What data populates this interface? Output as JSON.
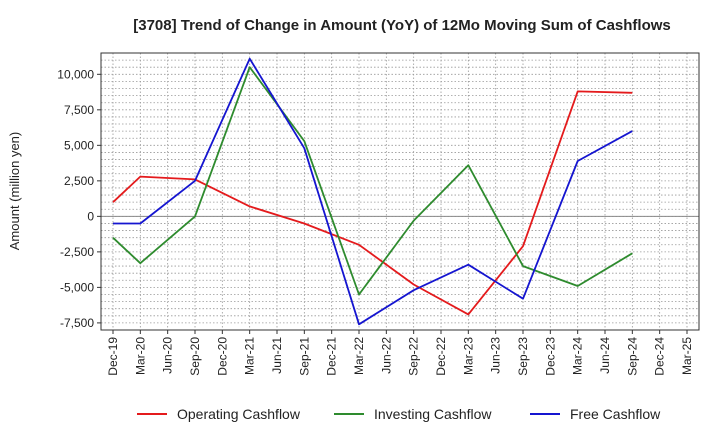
{
  "chart_data": {
    "type": "line",
    "title": "[3708]  Trend of Change in Amount (YoY) of 12Mo Moving Sum of Cashflows",
    "xlabel": "",
    "ylabel": "Amount (million yen)",
    "ylim": [
      -8000,
      11500
    ],
    "yticks": [
      -7500,
      -5000,
      -2500,
      0,
      2500,
      5000,
      7500,
      10000
    ],
    "ytick_labels": [
      "-7,500",
      "-5,000",
      "-2,500",
      "0",
      "2,500",
      "5,000",
      "7,500",
      "10,000"
    ],
    "categories": [
      "Dec-19",
      "Mar-20",
      "Jun-20",
      "Sep-20",
      "Dec-20",
      "Mar-21",
      "Jun-21",
      "Sep-21",
      "Dec-21",
      "Mar-22",
      "Jun-22",
      "Sep-22",
      "Dec-22",
      "Mar-23",
      "Jun-23",
      "Sep-23",
      "Dec-23",
      "Mar-24",
      "Jun-24",
      "Sep-24",
      "Dec-24",
      "Mar-25"
    ],
    "grid": true,
    "legend_position": "bottom",
    "series": [
      {
        "name": "Operating Cashflow",
        "color": "#e41a1c",
        "values": [
          1000,
          2800,
          null,
          2600,
          null,
          700,
          null,
          -500,
          null,
          -2000,
          null,
          -4800,
          null,
          -6900,
          null,
          -2100,
          null,
          8800,
          null,
          8700,
          null,
          null
        ]
      },
      {
        "name": "Investing Cashflow",
        "color": "#2e8b2e",
        "values": [
          -1500,
          -3300,
          null,
          0,
          null,
          10500,
          null,
          5300,
          null,
          -5500,
          null,
          -300,
          null,
          3600,
          null,
          -3500,
          null,
          -4900,
          null,
          -2600,
          null,
          null
        ]
      },
      {
        "name": "Free Cashflow",
        "color": "#1515d0",
        "values": [
          -500,
          -500,
          null,
          2500,
          null,
          11100,
          null,
          4800,
          null,
          -7600,
          null,
          -5200,
          null,
          -3400,
          null,
          -5800,
          null,
          3900,
          null,
          6000,
          null,
          null
        ]
      }
    ]
  }
}
